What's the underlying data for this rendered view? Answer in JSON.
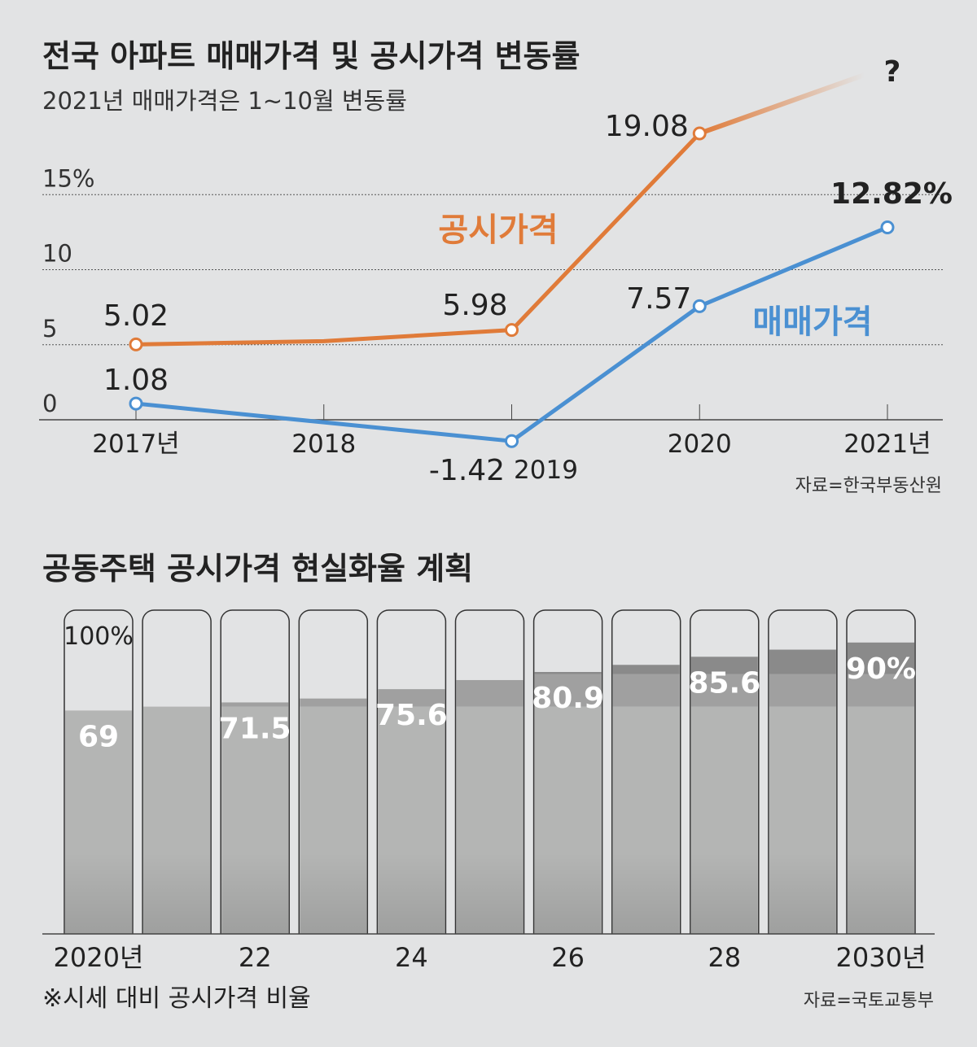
{
  "chart_data": [
    {
      "type": "line",
      "title": "전국 아파트 매매가격 및 공시가격 변동률",
      "subtitle": "2021년 매매가격은 1~10월 변동률",
      "categories": [
        "2017년",
        "2018",
        "2019",
        "2020",
        "2021년"
      ],
      "y_ticks": [
        "0",
        "5",
        "10",
        "15%"
      ],
      "y_tick_values": [
        0,
        5,
        10,
        15
      ],
      "ylim": [
        -2,
        21
      ],
      "grid": "dotted horizontal",
      "series": [
        {
          "name": "공시가격",
          "color": "#e07b39",
          "values": [
            5.02,
            5.24,
            5.98,
            19.08,
            null
          ],
          "labels": [
            "5.02",
            "",
            "5.98",
            "19.08",
            ""
          ],
          "extension_label": "?"
        },
        {
          "name": "매매가격",
          "color": "#4a90d2",
          "values": [
            1.08,
            -0.17,
            -1.42,
            7.57,
            12.82
          ],
          "labels": [
            "1.08",
            "",
            "-1.42",
            "7.57",
            "12.82%"
          ]
        }
      ],
      "source": "자료=한국부동산원"
    },
    {
      "type": "bar",
      "title": "공동주택 공시가격 현실화율 계획",
      "categories": [
        "2020",
        "2021",
        "2022",
        "2023",
        "2024",
        "2025",
        "2026",
        "2027",
        "2028",
        "2029",
        "2030"
      ],
      "tick_labels": [
        "2020년",
        "",
        "22",
        "",
        "24",
        "",
        "26",
        "",
        "28",
        "",
        "2030년"
      ],
      "values": [
        69,
        70.2,
        71.5,
        72.7,
        75.6,
        78.4,
        80.9,
        83.1,
        85.6,
        87.8,
        90
      ],
      "data_labels": [
        "69",
        "",
        "71.5",
        "",
        "75.6",
        "",
        "80.9",
        "",
        "85.6",
        "",
        "90%"
      ],
      "max_label": "100%",
      "ylim": [
        0,
        100
      ],
      "colors": {
        "base": "#b4b5b4",
        "mid": "#a0a0a0",
        "top": "#8a8a8a",
        "empty": "#e2e3e4"
      },
      "note": "※시세 대비 공시가격 비율",
      "source": "자료=국토교통부"
    }
  ]
}
